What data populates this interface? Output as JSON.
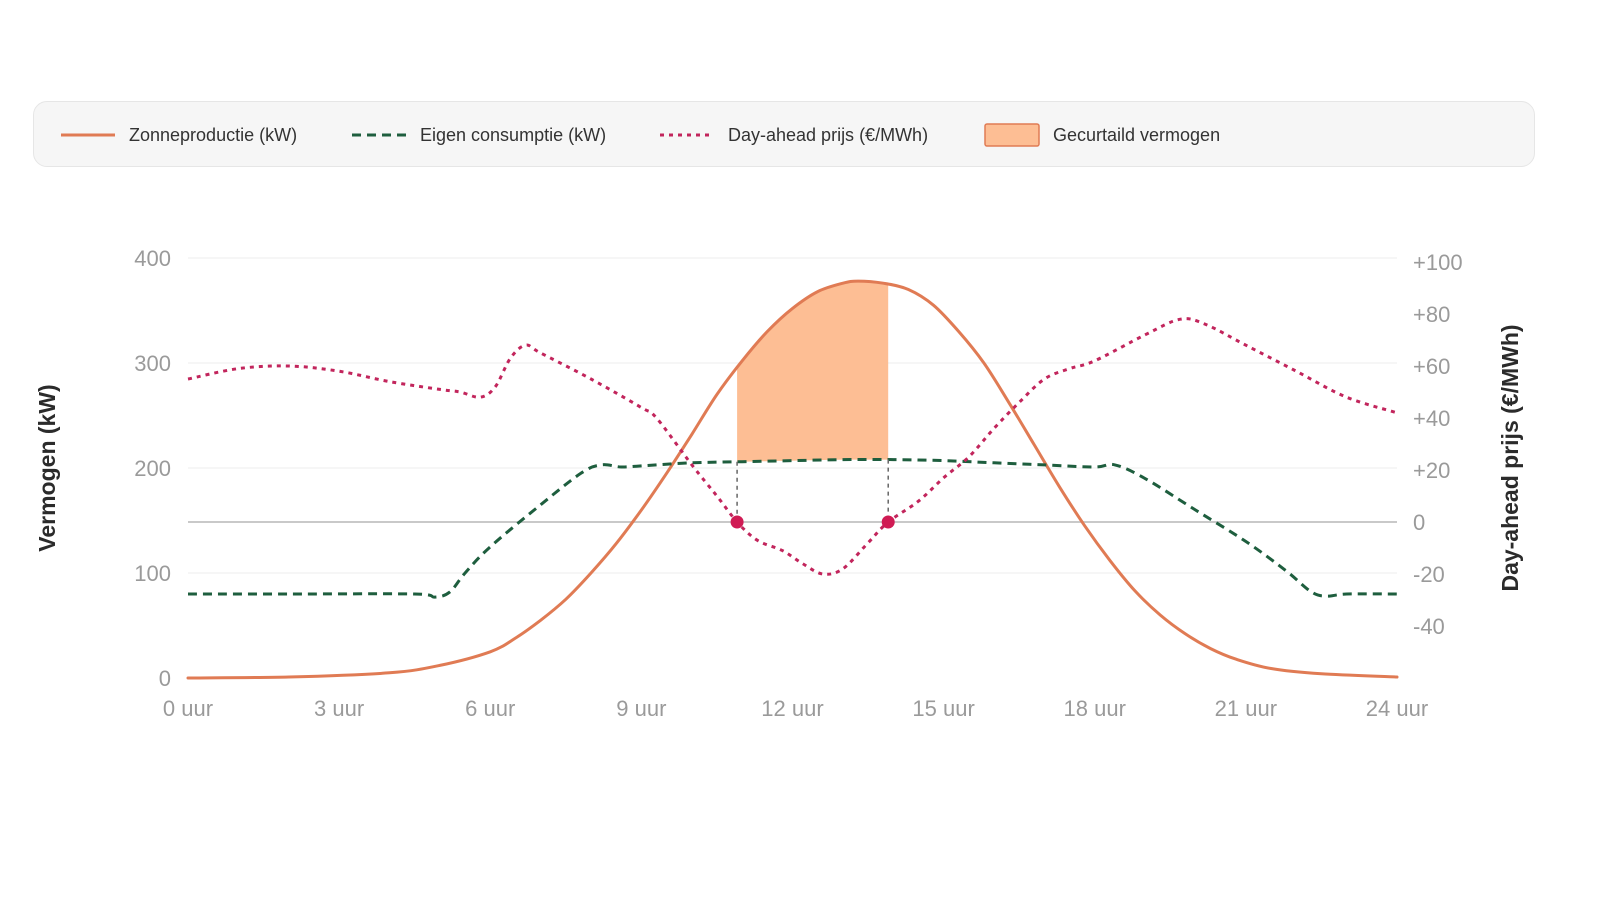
{
  "legend": {
    "items": [
      {
        "label": "Zonneproductie (kW)",
        "style": "solid",
        "color": "#e07b54"
      },
      {
        "label": "Eigen consumptie (kW)",
        "style": "dashed",
        "color": "#1e5e3e"
      },
      {
        "label": "Day-ahead prijs (€/MWh)",
        "style": "dotted",
        "color": "#c2255c"
      },
      {
        "label": "Gecurtaild vermogen",
        "style": "area",
        "color": "#fdbe94"
      }
    ]
  },
  "chart_data": {
    "type": "line",
    "x_axis": {
      "range": [
        0,
        24
      ],
      "ticks": [
        0,
        3,
        6,
        9,
        12,
        15,
        18,
        21,
        24
      ],
      "tick_labels": [
        "0 uur",
        "3 uur",
        "6 uur",
        "9 uur",
        "12 uur",
        "15 uur",
        "18 uur",
        "21 uur",
        "24 uur"
      ]
    },
    "y_left": {
      "label": "Vermogen (kW)",
      "range": [
        0,
        400
      ],
      "ticks": [
        0,
        100,
        200,
        300,
        400
      ],
      "tick_labels": [
        "0",
        "100",
        "200",
        "300",
        "400"
      ]
    },
    "y_right": {
      "label": "Day-ahead prijs (€/MWh)",
      "range": [
        -60,
        100
      ],
      "ticks": [
        100,
        80,
        60,
        40,
        20,
        0,
        -20,
        -40
      ],
      "tick_labels": [
        "+100",
        "+80",
        "+60",
        "+40",
        "+20",
        "0",
        "-20",
        "-40"
      ]
    },
    "grid": true,
    "series": [
      {
        "name": "Zonneproductie (kW)",
        "axis": "left",
        "style": "solid",
        "color": "#e07b54",
        "x": [
          0,
          2,
          4,
          5,
          6,
          6.5,
          7,
          7.5,
          8,
          8.5,
          9,
          9.5,
          10,
          10.5,
          11,
          11.5,
          12,
          12.5,
          13,
          13.3,
          13.8,
          14.3,
          14.8,
          15.3,
          15.8,
          16.3,
          16.8,
          17.3,
          17.8,
          18.3,
          18.8,
          19.3,
          19.8,
          20.3,
          20.8,
          21.5,
          22.5,
          24
        ],
        "y": [
          0,
          1,
          5,
          12,
          25,
          38,
          55,
          75,
          100,
          128,
          160,
          195,
          232,
          270,
          302,
          330,
          352,
          368,
          376,
          378,
          376,
          370,
          355,
          330,
          300,
          262,
          222,
          182,
          145,
          112,
          83,
          60,
          42,
          28,
          18,
          9,
          4,
          1
        ]
      },
      {
        "name": "Eigen consumptie (kW)",
        "axis": "left",
        "style": "dashed",
        "color": "#1e5e3e",
        "x": [
          0,
          2,
          4.5,
          4.9,
          5.2,
          5.5,
          6,
          7,
          7.8,
          8.2,
          8.6,
          9,
          10,
          11,
          12,
          13,
          14,
          15,
          16,
          17,
          18,
          18.4,
          19,
          20,
          21,
          21.8,
          22.3,
          22.6,
          23,
          24
        ],
        "y": [
          80,
          80,
          80,
          77,
          82,
          100,
          125,
          165,
          195,
          203,
          201,
          202,
          205,
          206,
          207,
          208,
          208,
          207,
          205,
          203,
          201,
          203,
          190,
          160,
          130,
          102,
          82,
          78,
          80,
          80
        ]
      },
      {
        "name": "Day-ahead prijs (€/MWh)",
        "axis": "right",
        "style": "dotted",
        "color": "#c2255c",
        "x": [
          0,
          1,
          2,
          3,
          4,
          5,
          5.4,
          5.8,
          6.1,
          6.4,
          6.7,
          7,
          8,
          9,
          9.3,
          10,
          10.5,
          10.9,
          11.3,
          11.8,
          12.2,
          12.6,
          13,
          13.5,
          13.9,
          14.5,
          15,
          15.5,
          16,
          16.5,
          17,
          17.5,
          18,
          19,
          19.7,
          20.2,
          21,
          22,
          23,
          24
        ],
        "y": [
          55,
          59,
          60,
          58,
          54,
          51,
          50,
          48,
          52,
          63,
          68,
          65,
          55,
          44,
          40,
          22,
          10,
          0,
          -7,
          -11,
          -16,
          -20,
          -18,
          -8,
          0,
          8,
          17,
          25,
          36,
          46,
          55,
          59,
          62,
          72,
          78,
          76,
          68,
          58,
          48,
          42
        ]
      }
    ],
    "curtailment": {
      "name": "Gecurtaild vermogen",
      "color": "#fdbe94",
      "x_start": 10.9,
      "x_end": 13.9,
      "lower_series": "Eigen consumptie (kW)",
      "upper_series": "Zonneproductie (kW)",
      "markers": [
        {
          "x": 10.9,
          "price": 0
        },
        {
          "x": 13.9,
          "price": 0
        }
      ]
    }
  }
}
